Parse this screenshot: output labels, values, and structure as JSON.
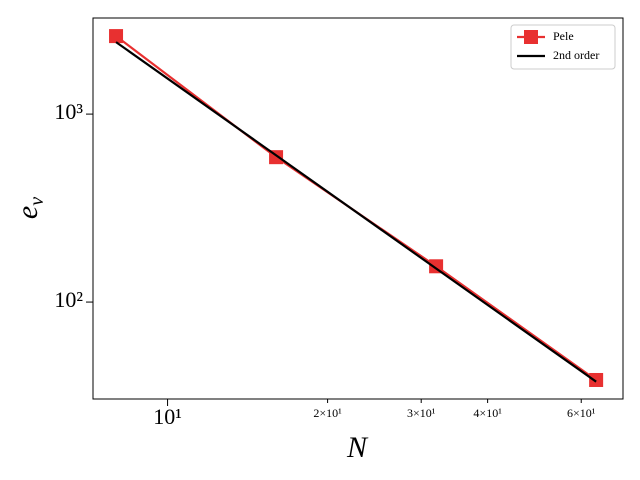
{
  "chart_data": {
    "type": "line",
    "xlabel": "N",
    "ylabel": "e",
    "ylabel_sub": "v",
    "xscale": "log",
    "yscale": "log",
    "xlim": [
      7.24,
      71.9
    ],
    "ylim": [
      30.5,
      3245
    ],
    "xticks": [
      {
        "value": 10,
        "label": "10¹"
      },
      {
        "value": 20,
        "label": "2×10¹"
      },
      {
        "value": 30,
        "label": "3×10¹"
      },
      {
        "value": 40,
        "label": "4×10¹"
      },
      {
        "value": 60,
        "label": "6×10¹"
      }
    ],
    "yticks": [
      {
        "value": 100,
        "label": "10²"
      },
      {
        "value": 1000,
        "label": "10³"
      }
    ],
    "legend": "upper right",
    "series": [
      {
        "name": "Pele",
        "color": "#e83030",
        "marker": "square",
        "x": [
          8,
          16,
          32,
          64
        ],
        "values": [
          2600,
          590,
          155,
          38.5
        ]
      },
      {
        "name": "2nd order",
        "color": "#000000",
        "marker": "none",
        "x": [
          8,
          64
        ],
        "values": [
          2415,
          37.7
        ]
      }
    ]
  }
}
